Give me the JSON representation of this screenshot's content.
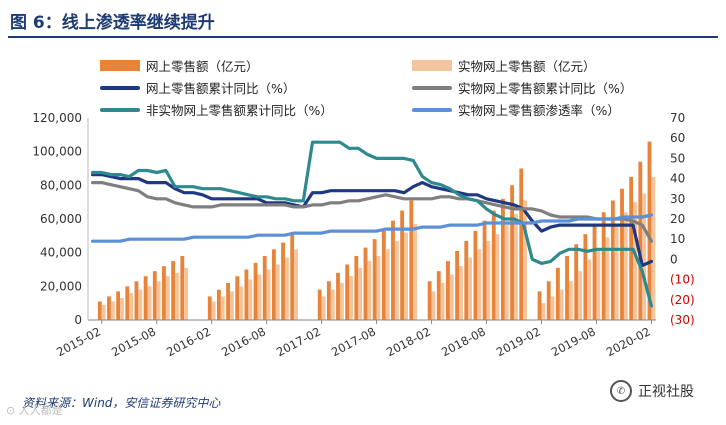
{
  "title": "图 6：线上渗透率继续提升",
  "source": "资料来源：Wind，安信证券研究中心",
  "brand": {
    "name": "正视社股",
    "icon": "wechat-icon"
  },
  "watermark": "⊙ 人人都是",
  "colors": {
    "online_bar": "#e8833a",
    "physical_bar": "#f4c49c",
    "online_yoy": "#1f3880",
    "physical_yoy": "#7f7f7f",
    "nonphysical_yoy": "#2e8a8f",
    "penetration": "#5b8fd8",
    "negative_tick": "#d00000"
  },
  "legend": [
    {
      "label": "网上零售额（亿元）",
      "kind": "bar",
      "color_key": "online_bar"
    },
    {
      "label": "实物网上零售额（亿元）",
      "kind": "bar",
      "color_key": "physical_bar"
    },
    {
      "label": "网上零售额累计同比（%）",
      "kind": "line",
      "color_key": "online_yoy"
    },
    {
      "label": "实物网上零售额累计同比（%）",
      "kind": "line",
      "color_key": "physical_yoy"
    },
    {
      "label": "非实物网上零售额累计同比（%）",
      "kind": "line",
      "color_key": "nonphysical_yoy"
    },
    {
      "label": "实物网上零售额渗透率（%）",
      "kind": "line",
      "color_key": "penetration"
    }
  ],
  "chart_data": {
    "type": "bar",
    "x": [
      "2015-01",
      "2015-02",
      "2015-03",
      "2015-04",
      "2015-05",
      "2015-06",
      "2015-07",
      "2015-08",
      "2015-09",
      "2015-10",
      "2015-11",
      "2015-12",
      "2016-01",
      "2016-02",
      "2016-03",
      "2016-04",
      "2016-05",
      "2016-06",
      "2016-07",
      "2016-08",
      "2016-09",
      "2016-10",
      "2016-11",
      "2016-12",
      "2017-01",
      "2017-02",
      "2017-03",
      "2017-04",
      "2017-05",
      "2017-06",
      "2017-07",
      "2017-08",
      "2017-09",
      "2017-10",
      "2017-11",
      "2017-12",
      "2018-01",
      "2018-02",
      "2018-03",
      "2018-04",
      "2018-05",
      "2018-06",
      "2018-07",
      "2018-08",
      "2018-09",
      "2018-10",
      "2018-11",
      "2018-12",
      "2019-01",
      "2019-02",
      "2019-03",
      "2019-04",
      "2019-05",
      "2019-06",
      "2019-07",
      "2019-08",
      "2019-09",
      "2019-10",
      "2019-11",
      "2019-12",
      "2020-01",
      "2020-02"
    ],
    "x_ticks": [
      "2015-02",
      "2015-08",
      "2016-02",
      "2016-08",
      "2017-02",
      "2017-08",
      "2018-02",
      "2018-08",
      "2019-02",
      "2019-08",
      "2020-02"
    ],
    "ylim_left": [
      0,
      120000
    ],
    "yticks_left": [
      "0",
      "20,000",
      "40,000",
      "60,000",
      "80,000",
      "100,000",
      "120,000"
    ],
    "ylim_right": [
      -30,
      70
    ],
    "yticks_right": [
      "(30)",
      "(20)",
      "(10)",
      "0",
      "10",
      "20",
      "30",
      "40",
      "50",
      "60",
      "70"
    ],
    "series": [
      {
        "name": "网上零售额（亿元）",
        "type": "bar",
        "axis": "left",
        "values": [
          0,
          11000,
          14000,
          17000,
          20000,
          23000,
          26000,
          29000,
          32000,
          35000,
          38000,
          0,
          0,
          14000,
          18000,
          22000,
          26000,
          30000,
          34000,
          38000,
          42000,
          46000,
          52000,
          0,
          0,
          18000,
          23000,
          28000,
          33000,
          38000,
          43000,
          48000,
          53000,
          59000,
          65000,
          71000,
          0,
          23000,
          29000,
          35000,
          41000,
          47000,
          53000,
          59000,
          65000,
          72000,
          80000,
          90000,
          0,
          17000,
          23000,
          31000,
          38000,
          45000,
          51000,
          57000,
          64000,
          71000,
          78000,
          85000,
          94000,
          106000
        ]
      },
      {
        "name": "实物网上零售额（亿元）",
        "type": "bar",
        "axis": "left",
        "values": [
          0,
          9000,
          11000,
          13000,
          16000,
          18000,
          20000,
          23000,
          26000,
          28000,
          31000,
          0,
          0,
          11000,
          14000,
          17000,
          20000,
          24000,
          27000,
          30000,
          33000,
          37000,
          42000,
          0,
          0,
          14000,
          18000,
          22000,
          26000,
          31000,
          35000,
          38000,
          42000,
          47000,
          52000,
          57000,
          0,
          17000,
          22000,
          27000,
          32000,
          37000,
          42000,
          47000,
          51000,
          57000,
          63000,
          71000,
          0,
          10000,
          14000,
          18000,
          23000,
          29000,
          36000,
          42000,
          49000,
          57000,
          64000,
          70000,
          75000,
          85000
        ]
      },
      {
        "name": "网上零售额累计同比（%）",
        "type": "line",
        "axis": "right",
        "values": [
          42,
          42,
          41,
          40,
          40,
          40,
          38,
          38,
          38,
          35,
          33,
          33,
          32,
          30,
          30,
          30,
          30,
          30,
          30,
          28,
          28,
          28,
          27,
          26,
          33,
          33,
          34,
          34,
          34,
          34,
          34,
          34,
          34,
          34,
          33,
          36,
          38,
          36,
          35,
          34,
          33,
          32,
          32,
          30,
          29,
          28,
          27,
          25,
          19,
          14,
          16,
          17,
          17,
          17,
          17,
          17,
          17,
          17,
          17,
          17,
          -3,
          -1
        ]
      },
      {
        "name": "实物网上零售额累计同比（%）",
        "type": "line",
        "axis": "right",
        "values": [
          38,
          38,
          37,
          36,
          35,
          34,
          31,
          30,
          30,
          28,
          27,
          26,
          26,
          26,
          27,
          27,
          27,
          27,
          27,
          27,
          27,
          27,
          26,
          26,
          27,
          27,
          28,
          28,
          29,
          29,
          30,
          31,
          32,
          31,
          30,
          30,
          30,
          30,
          31,
          31,
          30,
          30,
          29,
          28,
          27,
          26,
          25,
          25,
          25,
          24,
          22,
          21,
          21,
          21,
          21,
          20,
          20,
          20,
          20,
          19,
          17,
          9
        ]
      },
      {
        "name": "非实物网上零售额累计同比（%）",
        "type": "line",
        "axis": "right",
        "values": [
          43,
          43,
          42,
          42,
          41,
          44,
          44,
          43,
          44,
          36,
          36,
          36,
          35,
          35,
          35,
          34,
          33,
          32,
          31,
          31,
          30,
          30,
          29,
          29,
          58,
          58,
          58,
          58,
          55,
          55,
          52,
          50,
          50,
          50,
          50,
          49,
          41,
          38,
          37,
          35,
          32,
          30,
          29,
          25,
          22,
          20,
          20,
          18,
          0,
          -2,
          -1,
          3,
          5,
          5,
          4,
          5,
          5,
          5,
          5,
          5,
          -6,
          -23
        ]
      },
      {
        "name": "实物网上零售额渗透率（%）",
        "type": "line",
        "axis": "right",
        "values": [
          9,
          9,
          9,
          9,
          10,
          10,
          10,
          10,
          10,
          10,
          10,
          11,
          11,
          11,
          11,
          11,
          11,
          11,
          12,
          12,
          12,
          12,
          13,
          13,
          13,
          13,
          14,
          14,
          14,
          14,
          14,
          14,
          15,
          15,
          15,
          15,
          16,
          16,
          16,
          17,
          17,
          17,
          17,
          18,
          18,
          18,
          18,
          18,
          18,
          19,
          19,
          19,
          19,
          20,
          20,
          20,
          20,
          20,
          21,
          21,
          21,
          22
        ]
      }
    ]
  }
}
